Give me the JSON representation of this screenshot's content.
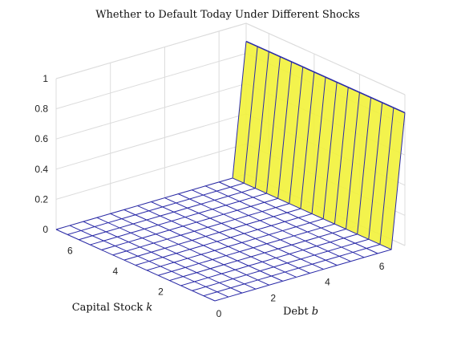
{
  "chart_data": {
    "type": "surface3d",
    "title": "Whether to Default Today Under Different Shocks",
    "xlabel_prefix": "Debt ",
    "xlabel_var": "b",
    "ylabel_prefix": "Capital Stock ",
    "ylabel_var": "k",
    "zlabel": "",
    "xlim": [
      0,
      7
    ],
    "ylim": [
      0,
      7
    ],
    "zlim": [
      0,
      1
    ],
    "x_ticks": [
      "0",
      "2",
      "4",
      "6"
    ],
    "y_ticks": [
      "2",
      "4",
      "6"
    ],
    "z_ticks": [
      "0",
      "0.2",
      "0.4",
      "0.6",
      "0.8",
      "1"
    ],
    "grid": true,
    "surface": {
      "description_of_values": "default indicator is 0 everywhere except a spike to about 0.88 at the highest debt level",
      "x_grid": [
        0,
        0.5,
        1,
        1.5,
        2,
        2.5,
        3,
        3.5,
        4,
        4.5,
        5,
        5.5,
        6,
        6.5,
        7
      ],
      "y_grid": [
        0,
        0.5,
        1,
        1.5,
        2,
        2.5,
        3,
        3.5,
        4,
        4.5,
        5,
        5.5,
        6,
        6.5,
        7
      ],
      "z_spike_at_x": 7,
      "z_spike_value": 0.88,
      "z_elsewhere": 0
    },
    "colors": {
      "mesh": "#2a2aa8",
      "spike_fill": "#f2f23a"
    }
  }
}
